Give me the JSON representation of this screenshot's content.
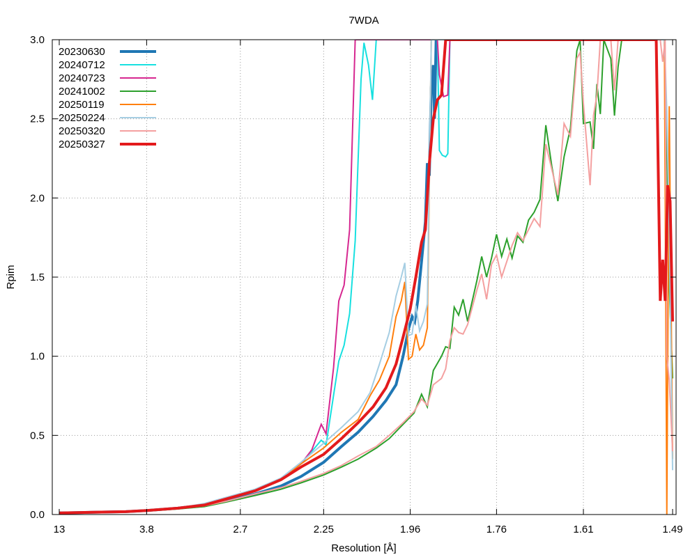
{
  "chart_data": {
    "type": "line",
    "title": "7WDA",
    "xlabel": "Resolution [Å]",
    "ylabel": "Rpim",
    "x_scale": "inverse-square",
    "xlim": [
      13,
      1.49
    ],
    "ylim": [
      0,
      3.0
    ],
    "grid": true,
    "legend_position": "top-left",
    "xticks": [
      {
        "label": "13",
        "value": 13
      },
      {
        "label": "3.8",
        "value": 3.8
      },
      {
        "label": "2.7",
        "value": 2.7
      },
      {
        "label": "2.25",
        "value": 2.25
      },
      {
        "label": "1.96",
        "value": 1.96
      },
      {
        "label": "1.76",
        "value": 1.76
      },
      {
        "label": "1.61",
        "value": 1.61
      },
      {
        "label": "1.49",
        "value": 1.49
      }
    ],
    "yticks": [
      {
        "label": "0.0",
        "value": 0
      },
      {
        "label": "0.5",
        "value": 0.5
      },
      {
        "label": "1.0",
        "value": 1.0
      },
      {
        "label": "1.5",
        "value": 1.5
      },
      {
        "label": "2.0",
        "value": 2.0
      },
      {
        "label": "2.5",
        "value": 2.5
      },
      {
        "label": "3.0",
        "value": 3.0
      }
    ],
    "series": [
      {
        "name": "20230630",
        "color": "#1f77b4",
        "width": 4,
        "points": [
          [
            13,
            0.01
          ],
          [
            5.5,
            0.015
          ],
          [
            4.3,
            0.018
          ],
          [
            3.8,
            0.025
          ],
          [
            3.3,
            0.04
          ],
          [
            3.0,
            0.06
          ],
          [
            2.8,
            0.09
          ],
          [
            2.6,
            0.13
          ],
          [
            2.45,
            0.18
          ],
          [
            2.35,
            0.24
          ],
          [
            2.25,
            0.33
          ],
          [
            2.18,
            0.43
          ],
          [
            2.12,
            0.52
          ],
          [
            2.07,
            0.62
          ],
          [
            2.03,
            0.72
          ],
          [
            2.0,
            0.82
          ],
          [
            1.98,
            1.0
          ],
          [
            1.965,
            1.17
          ],
          [
            1.955,
            1.25
          ],
          [
            1.948,
            1.22
          ],
          [
            1.94,
            1.35
          ],
          [
            1.93,
            1.6
          ],
          [
            1.92,
            1.85
          ],
          [
            1.915,
            2.22
          ],
          [
            1.91,
            2.14
          ],
          [
            1.905,
            2.7
          ],
          [
            1.9,
            2.84
          ],
          [
            1.897,
            2.5
          ],
          [
            1.893,
            3.0
          ]
        ]
      },
      {
        "name": "20240712",
        "color": "#17e0e0",
        "width": 2,
        "points": [
          [
            13,
            0.01
          ],
          [
            5.5,
            0.015
          ],
          [
            4.3,
            0.018
          ],
          [
            3.8,
            0.025
          ],
          [
            3.3,
            0.04
          ],
          [
            3.0,
            0.06
          ],
          [
            2.8,
            0.1
          ],
          [
            2.6,
            0.15
          ],
          [
            2.45,
            0.22
          ],
          [
            2.35,
            0.32
          ],
          [
            2.3,
            0.4
          ],
          [
            2.26,
            0.47
          ],
          [
            2.24,
            0.44
          ],
          [
            2.22,
            0.65
          ],
          [
            2.19,
            0.97
          ],
          [
            2.17,
            1.07
          ],
          [
            2.15,
            1.27
          ],
          [
            2.13,
            1.73
          ],
          [
            2.11,
            2.75
          ],
          [
            2.1,
            2.98
          ],
          [
            2.085,
            2.84
          ],
          [
            2.072,
            2.62
          ],
          [
            2.06,
            3.0
          ],
          [
            1.89,
            3.0
          ],
          [
            1.885,
            2.3
          ],
          [
            1.878,
            2.27
          ],
          [
            1.87,
            2.26
          ],
          [
            1.865,
            2.28
          ],
          [
            1.86,
            3.0
          ]
        ]
      },
      {
        "name": "20240723",
        "color": "#d62790",
        "width": 2,
        "points": [
          [
            13,
            0.01
          ],
          [
            5.5,
            0.015
          ],
          [
            4.3,
            0.018
          ],
          [
            3.8,
            0.025
          ],
          [
            3.3,
            0.04
          ],
          [
            3.0,
            0.06
          ],
          [
            2.8,
            0.1
          ],
          [
            2.6,
            0.15
          ],
          [
            2.45,
            0.22
          ],
          [
            2.35,
            0.32
          ],
          [
            2.3,
            0.41
          ],
          [
            2.26,
            0.57
          ],
          [
            2.24,
            0.51
          ],
          [
            2.21,
            0.93
          ],
          [
            2.19,
            1.35
          ],
          [
            2.17,
            1.45
          ],
          [
            2.15,
            1.8
          ],
          [
            2.13,
            3.0
          ],
          [
            1.89,
            3.0
          ],
          [
            1.885,
            2.78
          ],
          [
            1.875,
            2.64
          ],
          [
            1.865,
            2.65
          ],
          [
            1.86,
            3.0
          ]
        ]
      },
      {
        "name": "20241002",
        "color": "#2ca02c",
        "width": 2,
        "points": [
          [
            13,
            0.01
          ],
          [
            5.5,
            0.014
          ],
          [
            4.3,
            0.017
          ],
          [
            3.8,
            0.022
          ],
          [
            3.3,
            0.035
          ],
          [
            3.0,
            0.05
          ],
          [
            2.8,
            0.08
          ],
          [
            2.6,
            0.12
          ],
          [
            2.45,
            0.16
          ],
          [
            2.35,
            0.2
          ],
          [
            2.25,
            0.25
          ],
          [
            2.18,
            0.3
          ],
          [
            2.12,
            0.35
          ],
          [
            2.06,
            0.42
          ],
          [
            2.02,
            0.48
          ],
          [
            1.98,
            0.57
          ],
          [
            1.95,
            0.64
          ],
          [
            1.93,
            0.76
          ],
          [
            1.915,
            0.68
          ],
          [
            1.9,
            0.91
          ],
          [
            1.88,
            1.0
          ],
          [
            1.87,
            1.06
          ],
          [
            1.86,
            1.05
          ],
          [
            1.85,
            1.31
          ],
          [
            1.84,
            1.26
          ],
          [
            1.83,
            1.36
          ],
          [
            1.82,
            1.22
          ],
          [
            1.8,
            1.48
          ],
          [
            1.79,
            1.63
          ],
          [
            1.78,
            1.5
          ],
          [
            1.77,
            1.62
          ],
          [
            1.76,
            1.77
          ],
          [
            1.75,
            1.63
          ],
          [
            1.74,
            1.74
          ],
          [
            1.73,
            1.62
          ],
          [
            1.72,
            1.76
          ],
          [
            1.71,
            1.72
          ],
          [
            1.7,
            1.86
          ],
          [
            1.69,
            1.91
          ],
          [
            1.68,
            1.99
          ],
          [
            1.67,
            2.46
          ],
          [
            1.66,
            2.2
          ],
          [
            1.65,
            1.98
          ],
          [
            1.64,
            2.26
          ],
          [
            1.63,
            2.44
          ],
          [
            1.62,
            2.93
          ],
          [
            1.615,
            3.0
          ],
          [
            1.61,
            2.47
          ],
          [
            1.6,
            2.48
          ],
          [
            1.595,
            2.31
          ],
          [
            1.59,
            2.72
          ],
          [
            1.585,
            2.53
          ],
          [
            1.58,
            3.0
          ],
          [
            1.57,
            2.88
          ],
          [
            1.565,
            2.52
          ],
          [
            1.56,
            2.83
          ],
          [
            1.555,
            3.0
          ],
          [
            1.5,
            3.0
          ],
          [
            1.497,
            2.3
          ],
          [
            1.494,
            1.45
          ],
          [
            1.49,
            0.86
          ]
        ]
      },
      {
        "name": "20250119",
        "color": "#ff7f0e",
        "width": 2,
        "points": [
          [
            13,
            0.01
          ],
          [
            5.5,
            0.015
          ],
          [
            4.3,
            0.018
          ],
          [
            3.8,
            0.025
          ],
          [
            3.3,
            0.04
          ],
          [
            3.0,
            0.06
          ],
          [
            2.8,
            0.1
          ],
          [
            2.6,
            0.15
          ],
          [
            2.45,
            0.22
          ],
          [
            2.35,
            0.32
          ],
          [
            2.25,
            0.42
          ],
          [
            2.18,
            0.52
          ],
          [
            2.12,
            0.6
          ],
          [
            2.08,
            0.75
          ],
          [
            2.05,
            0.85
          ],
          [
            2.02,
            1.0
          ],
          [
            2.0,
            1.25
          ],
          [
            1.985,
            1.35
          ],
          [
            1.975,
            1.47
          ],
          [
            1.965,
            0.98
          ],
          [
            1.955,
            1.0
          ],
          [
            1.945,
            1.14
          ],
          [
            1.935,
            1.04
          ],
          [
            1.925,
            1.07
          ],
          [
            1.915,
            1.18
          ],
          [
            1.905,
            3.0
          ],
          [
            1.5,
            3.0
          ],
          [
            1.497,
            0.0
          ],
          [
            1.494,
            2.58
          ],
          [
            1.49,
            0.35
          ]
        ]
      },
      {
        "name": "20250224",
        "color": "#a6cee3",
        "width": 2,
        "points": [
          [
            13,
            0.01
          ],
          [
            5.5,
            0.015
          ],
          [
            4.3,
            0.018
          ],
          [
            3.8,
            0.025
          ],
          [
            3.3,
            0.04
          ],
          [
            3.0,
            0.07
          ],
          [
            2.8,
            0.11
          ],
          [
            2.6,
            0.16
          ],
          [
            2.45,
            0.23
          ],
          [
            2.35,
            0.33
          ],
          [
            2.25,
            0.45
          ],
          [
            2.18,
            0.55
          ],
          [
            2.12,
            0.65
          ],
          [
            2.08,
            0.77
          ],
          [
            2.05,
            0.95
          ],
          [
            2.02,
            1.15
          ],
          [
            2.0,
            1.38
          ],
          [
            1.985,
            1.5
          ],
          [
            1.975,
            1.59
          ],
          [
            1.965,
            1.13
          ],
          [
            1.955,
            1.14
          ],
          [
            1.945,
            1.32
          ],
          [
            1.935,
            1.16
          ],
          [
            1.925,
            1.22
          ],
          [
            1.915,
            1.33
          ],
          [
            1.905,
            3.0
          ],
          [
            1.5,
            3.0
          ],
          [
            1.497,
            2.55
          ],
          [
            1.494,
            1.8
          ],
          [
            1.49,
            0.28
          ]
        ]
      },
      {
        "name": "20250320",
        "color": "#f4a0a0",
        "width": 2,
        "points": [
          [
            13,
            0.01
          ],
          [
            5.5,
            0.014
          ],
          [
            4.3,
            0.017
          ],
          [
            3.8,
            0.023
          ],
          [
            3.3,
            0.037
          ],
          [
            3.0,
            0.055
          ],
          [
            2.8,
            0.085
          ],
          [
            2.6,
            0.13
          ],
          [
            2.45,
            0.17
          ],
          [
            2.35,
            0.21
          ],
          [
            2.25,
            0.26
          ],
          [
            2.18,
            0.31
          ],
          [
            2.12,
            0.37
          ],
          [
            2.06,
            0.43
          ],
          [
            2.02,
            0.5
          ],
          [
            1.98,
            0.58
          ],
          [
            1.95,
            0.65
          ],
          [
            1.93,
            0.73
          ],
          [
            1.915,
            0.69
          ],
          [
            1.9,
            0.82
          ],
          [
            1.88,
            0.86
          ],
          [
            1.87,
            0.92
          ],
          [
            1.86,
            1.1
          ],
          [
            1.85,
            1.18
          ],
          [
            1.84,
            1.15
          ],
          [
            1.83,
            1.14
          ],
          [
            1.82,
            1.2
          ],
          [
            1.8,
            1.42
          ],
          [
            1.79,
            1.52
          ],
          [
            1.78,
            1.36
          ],
          [
            1.77,
            1.58
          ],
          [
            1.76,
            1.64
          ],
          [
            1.75,
            1.5
          ],
          [
            1.74,
            1.6
          ],
          [
            1.73,
            1.7
          ],
          [
            1.72,
            1.78
          ],
          [
            1.71,
            1.73
          ],
          [
            1.7,
            1.8
          ],
          [
            1.69,
            1.87
          ],
          [
            1.68,
            1.82
          ],
          [
            1.67,
            2.34
          ],
          [
            1.66,
            2.18
          ],
          [
            1.65,
            2.02
          ],
          [
            1.64,
            2.47
          ],
          [
            1.63,
            2.39
          ],
          [
            1.62,
            2.88
          ],
          [
            1.615,
            2.92
          ],
          [
            1.61,
            2.6
          ],
          [
            1.6,
            2.08
          ],
          [
            1.595,
            2.52
          ],
          [
            1.59,
            2.65
          ],
          [
            1.585,
            3.0
          ],
          [
            1.57,
            3.0
          ],
          [
            1.565,
            2.68
          ],
          [
            1.56,
            3.0
          ],
          [
            1.505,
            3.0
          ],
          [
            1.502,
            2.86
          ],
          [
            1.499,
            3.0
          ],
          [
            1.497,
            1.0
          ],
          [
            1.494,
            0.85
          ],
          [
            1.49,
            0.4
          ]
        ]
      },
      {
        "name": "20250327",
        "color": "#e31a1c",
        "width": 4,
        "points": [
          [
            13,
            0.01
          ],
          [
            5.5,
            0.015
          ],
          [
            4.3,
            0.018
          ],
          [
            3.8,
            0.025
          ],
          [
            3.3,
            0.04
          ],
          [
            3.0,
            0.06
          ],
          [
            2.8,
            0.1
          ],
          [
            2.6,
            0.15
          ],
          [
            2.45,
            0.22
          ],
          [
            2.35,
            0.3
          ],
          [
            2.25,
            0.38
          ],
          [
            2.18,
            0.48
          ],
          [
            2.12,
            0.58
          ],
          [
            2.07,
            0.68
          ],
          [
            2.03,
            0.8
          ],
          [
            2.0,
            0.95
          ],
          [
            1.98,
            1.12
          ],
          [
            1.96,
            1.3
          ],
          [
            1.945,
            1.5
          ],
          [
            1.93,
            1.72
          ],
          [
            1.92,
            1.8
          ],
          [
            1.91,
            2.22
          ],
          [
            1.9,
            2.5
          ],
          [
            1.89,
            2.62
          ],
          [
            1.88,
            2.65
          ],
          [
            1.87,
            3.0
          ],
          [
            1.51,
            3.0
          ],
          [
            1.505,
            1.35
          ],
          [
            1.502,
            1.61
          ],
          [
            1.499,
            1.35
          ],
          [
            1.496,
            2.08
          ],
          [
            1.493,
            1.98
          ],
          [
            1.49,
            1.22
          ]
        ]
      }
    ]
  }
}
